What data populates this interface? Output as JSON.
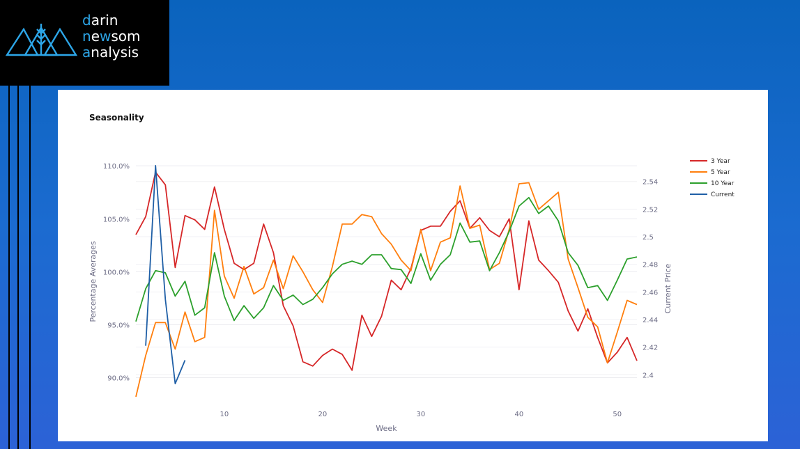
{
  "logo": {
    "line1_first": "d",
    "line1_rest": "arin",
    "line2_first": "n",
    "line2_mid": "e",
    "line2_w": "w",
    "line2_rest": "som",
    "line3_first": "a",
    "line3_rest": "nalysis",
    "icon": "wheat-mountains-icon",
    "accent_color": "#2da6e8"
  },
  "chart_data": {
    "type": "line",
    "title": "Seasonality",
    "xlabel": "Week",
    "ylabel": "Percentage Averages",
    "y2label": "Current Price",
    "xlim": [
      1,
      52
    ],
    "ylim": [
      88,
      110.8
    ],
    "y2lim": [
      2.3825,
      2.5575
    ],
    "xticks": [
      10,
      20,
      30,
      40,
      50
    ],
    "yticks": [
      90,
      95,
      100,
      105,
      110
    ],
    "ytick_labels": [
      "90.0%",
      "95.0%",
      "100.0%",
      "105.0%",
      "110.0%"
    ],
    "y2ticks": [
      2.4,
      2.42,
      2.44,
      2.46,
      2.48,
      2.5,
      2.52,
      2.54
    ],
    "y2tick_labels": [
      "2.4",
      "2.42",
      "2.44",
      "2.46",
      "2.48",
      "2.5",
      "2.52",
      "2.54"
    ],
    "grid": true,
    "legend_position": "top-right",
    "series": [
      {
        "name": "3 Year",
        "color": "#d62728",
        "axis": "y",
        "x": [
          1,
          2,
          3,
          4,
          5,
          6,
          7,
          8,
          9,
          10,
          11,
          12,
          13,
          14,
          15,
          16,
          17,
          18,
          19,
          20,
          21,
          22,
          23,
          24,
          25,
          26,
          27,
          28,
          29,
          30,
          31,
          32,
          33,
          34,
          35,
          36,
          37,
          38,
          39,
          40,
          41,
          42,
          43,
          44,
          45,
          46,
          47,
          48,
          49,
          50,
          51,
          52
        ],
        "values": [
          103.5,
          105.2,
          109.4,
          108.2,
          100.4,
          105.3,
          104.9,
          104.0,
          108.0,
          104.0,
          100.8,
          100.2,
          100.8,
          104.5,
          101.8,
          96.8,
          94.9,
          91.5,
          91.1,
          92.1,
          92.7,
          92.2,
          90.7,
          95.9,
          93.9,
          95.8,
          99.2,
          98.3,
          100.3,
          103.9,
          104.3,
          104.3,
          105.7,
          106.7,
          104.1,
          105.1,
          103.9,
          103.3,
          105.0,
          98.3,
          104.8,
          101.1,
          100.1,
          99.0,
          96.3,
          94.4,
          96.5,
          93.8,
          91.4,
          92.4,
          93.8,
          91.6
        ]
      },
      {
        "name": "5 Year",
        "color": "#ff7f0e",
        "axis": "y",
        "x": [
          1,
          2,
          3,
          4,
          5,
          6,
          7,
          8,
          9,
          10,
          11,
          12,
          13,
          14,
          15,
          16,
          17,
          18,
          19,
          20,
          21,
          22,
          23,
          24,
          25,
          26,
          27,
          28,
          29,
          30,
          31,
          32,
          33,
          34,
          35,
          36,
          37,
          38,
          39,
          40,
          41,
          42,
          43,
          44,
          45,
          46,
          47,
          48,
          49,
          50,
          51,
          52
        ],
        "values": [
          88.2,
          92.1,
          95.2,
          95.2,
          92.7,
          96.2,
          93.4,
          93.8,
          105.8,
          99.6,
          97.5,
          100.5,
          97.9,
          98.5,
          101.1,
          98.4,
          101.5,
          100.0,
          98.3,
          97.1,
          100.5,
          104.5,
          104.5,
          105.4,
          105.2,
          103.6,
          102.6,
          101.1,
          100.1,
          104.0,
          100.1,
          102.8,
          103.2,
          108.1,
          104.1,
          104.4,
          100.2,
          100.8,
          104.0,
          108.3,
          108.4,
          105.9,
          106.7,
          107.5,
          101.2,
          98.5,
          95.7,
          94.8,
          91.4,
          94.3,
          97.3,
          96.9
        ]
      },
      {
        "name": "10 Year",
        "color": "#2ca02c",
        "axis": "y",
        "x": [
          1,
          2,
          3,
          4,
          5,
          6,
          7,
          8,
          9,
          10,
          11,
          12,
          13,
          14,
          15,
          16,
          17,
          18,
          19,
          20,
          21,
          22,
          23,
          24,
          25,
          26,
          27,
          28,
          29,
          30,
          31,
          32,
          33,
          34,
          35,
          36,
          37,
          38,
          39,
          40,
          41,
          42,
          43,
          44,
          45,
          46,
          47,
          48,
          49,
          50,
          51,
          52
        ],
        "values": [
          95.3,
          98.4,
          100.1,
          99.9,
          97.7,
          99.1,
          95.9,
          96.6,
          101.8,
          97.7,
          95.4,
          96.8,
          95.6,
          96.6,
          98.7,
          97.3,
          97.8,
          96.9,
          97.4,
          98.5,
          99.8,
          100.7,
          101.0,
          100.7,
          101.6,
          101.6,
          100.3,
          100.2,
          98.9,
          101.7,
          99.2,
          100.7,
          101.6,
          104.6,
          102.8,
          102.9,
          100.1,
          101.8,
          103.8,
          106.2,
          107.0,
          105.5,
          106.2,
          104.8,
          101.8,
          100.6,
          98.5,
          98.7,
          97.3,
          99.2,
          101.2,
          101.4
        ]
      },
      {
        "name": "Current",
        "color": "#1f5fa6",
        "axis": "y2",
        "x": [
          2,
          3,
          4,
          5,
          6
        ],
        "values": [
          2.421,
          2.5515,
          2.4545,
          2.3935,
          2.4105
        ]
      }
    ]
  }
}
